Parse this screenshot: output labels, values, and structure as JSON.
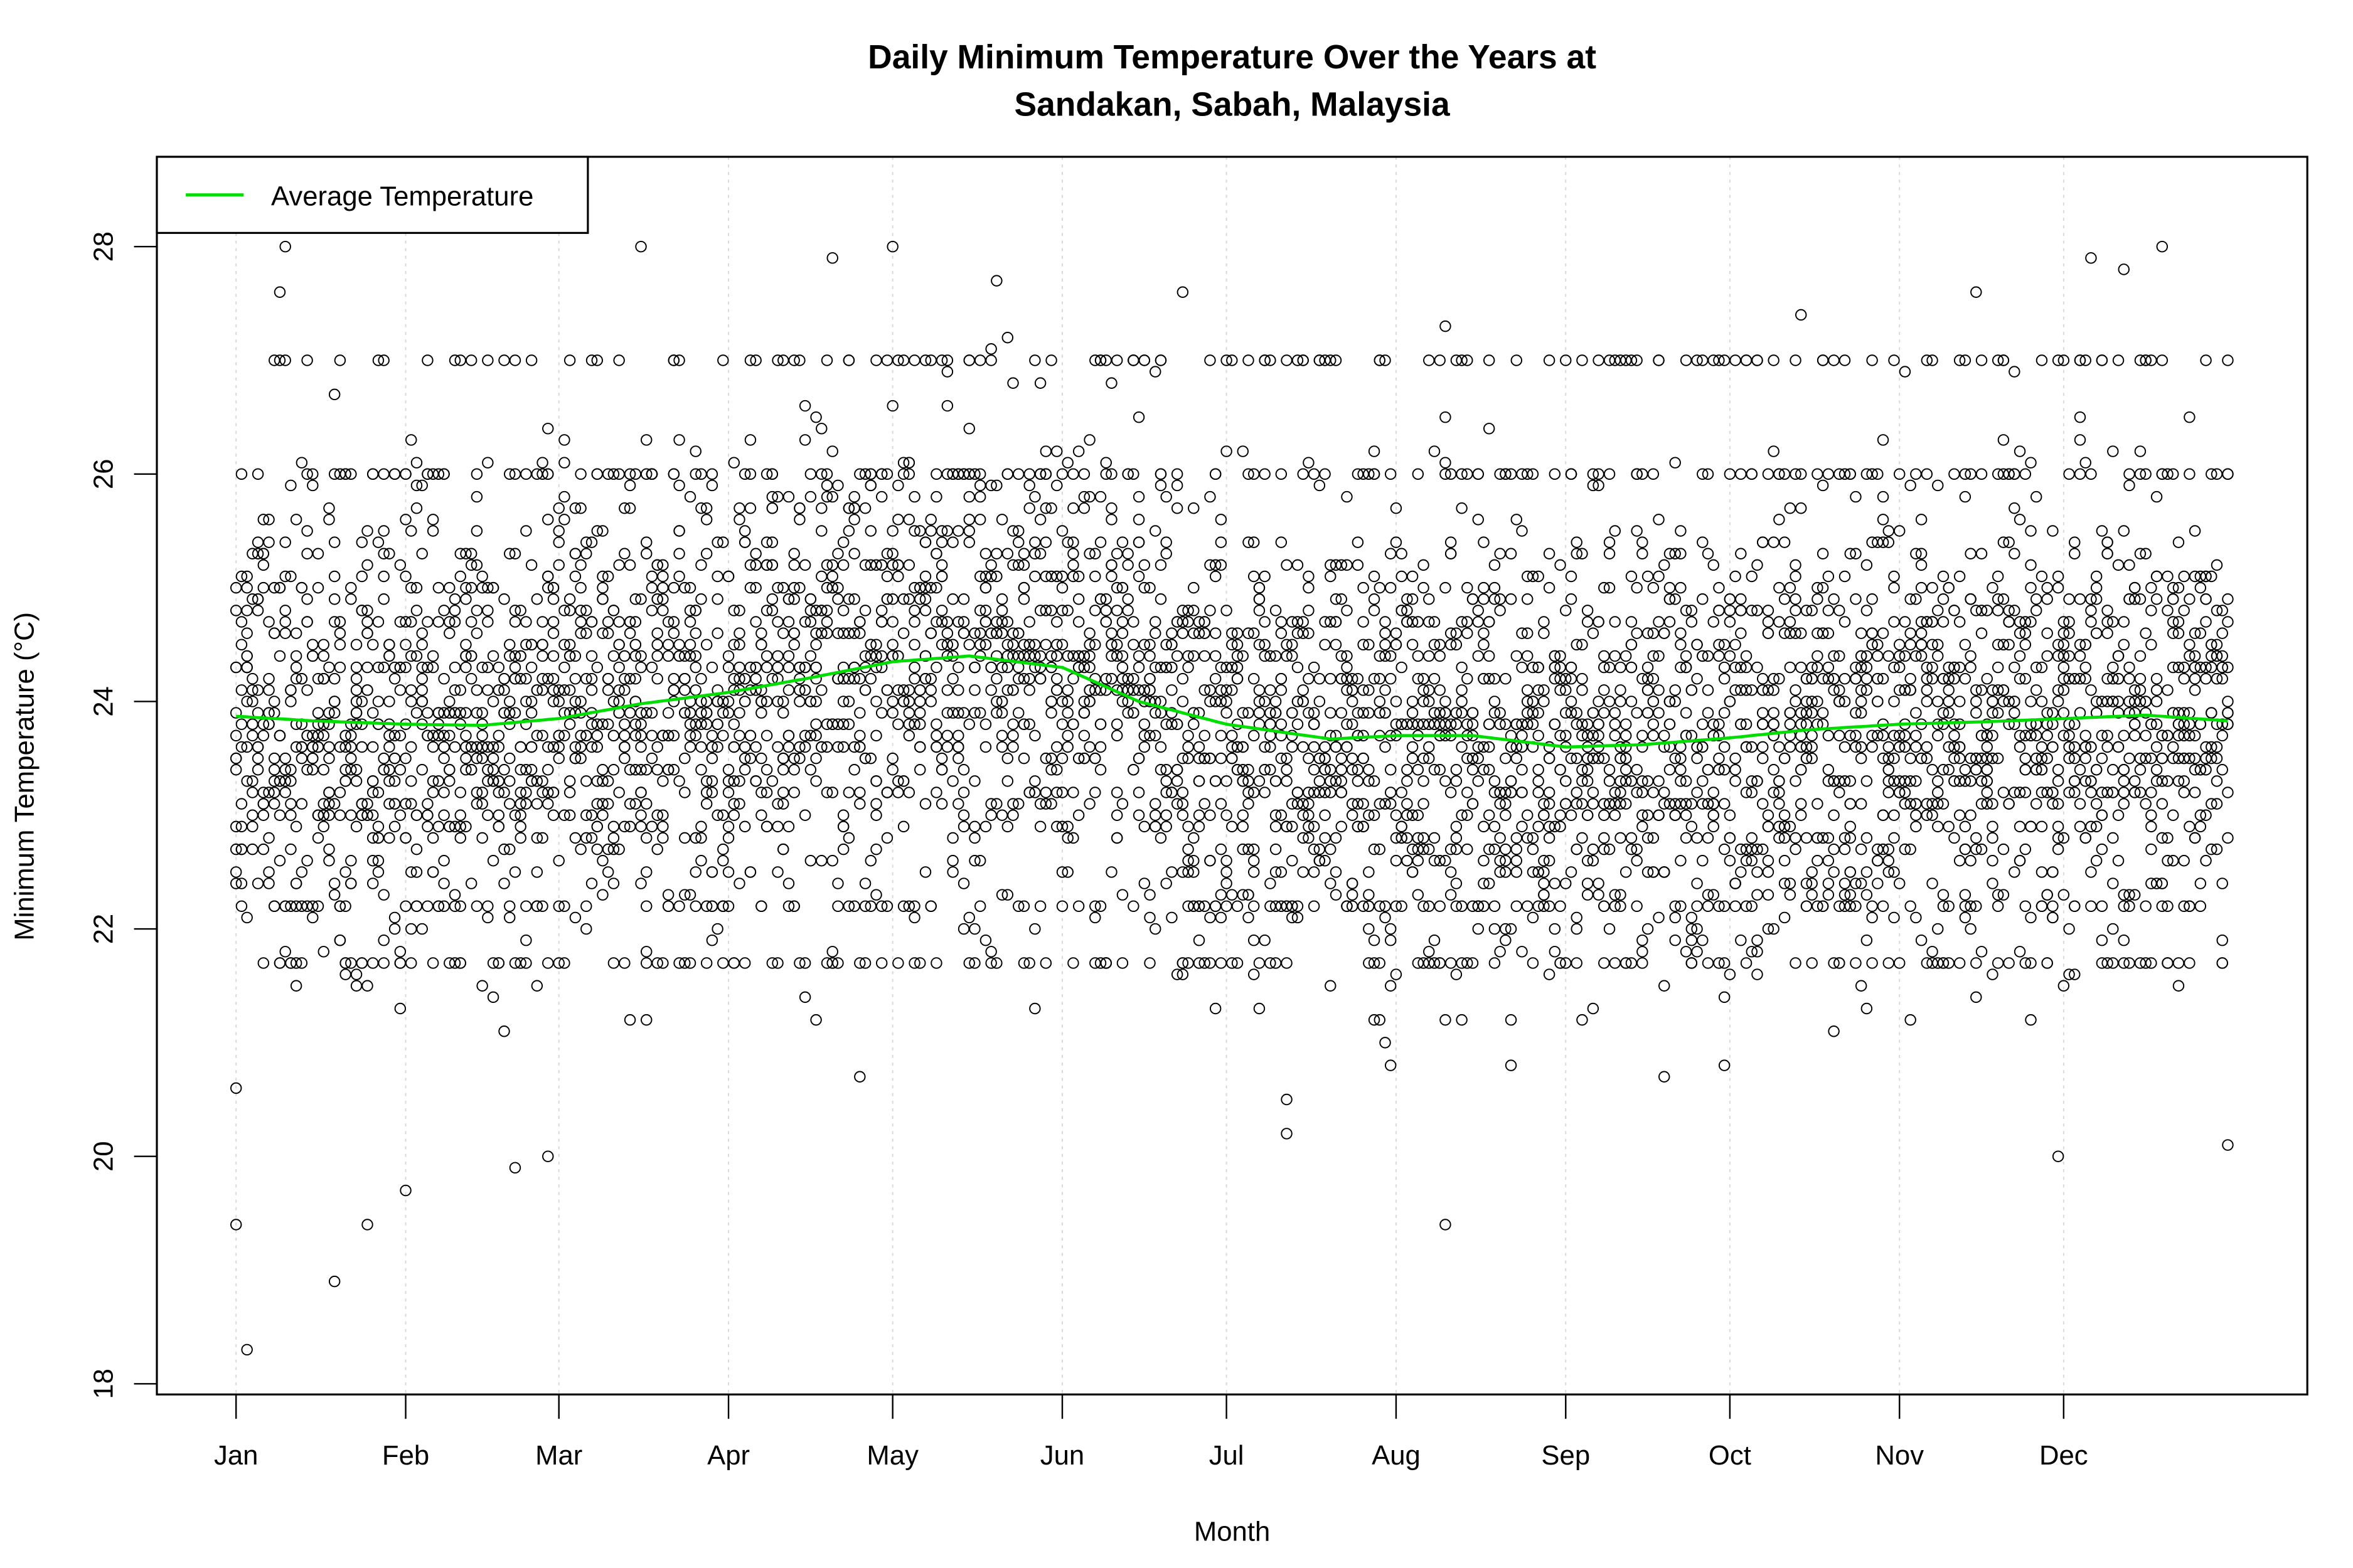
{
  "chart_data": {
    "type": "scatter",
    "title": "Daily Minimum Temperature Over the Years at",
    "subtitle": "Sandakan, Sabah, Malaysia",
    "xlabel": "Month",
    "ylabel": "Minimum Temperature (°C)",
    "x_tick_labels": [
      "Jan",
      "Feb",
      "Mar",
      "Apr",
      "May",
      "Jun",
      "Jul",
      "Aug",
      "Sep",
      "Oct",
      "Nov",
      "Dec"
    ],
    "x_tick_days": [
      1,
      32,
      60,
      91,
      121,
      152,
      182,
      213,
      244,
      274,
      305,
      335
    ],
    "xlim_days": [
      1,
      365
    ],
    "y_ticks": [
      18,
      20,
      22,
      24,
      26,
      28
    ],
    "ylim": [
      18,
      28.8
    ],
    "grid": "vertical dotted at month ticks",
    "legend": {
      "position": "top-left",
      "entries": [
        {
          "label": "Average Temperature",
          "color": "#00dd00"
        }
      ]
    },
    "average_line": {
      "name": "Average Temperature",
      "color": "#00dd00",
      "x_day": [
        1,
        15,
        32,
        46,
        60,
        75,
        91,
        105,
        121,
        135,
        152,
        166,
        182,
        201,
        213,
        227,
        244,
        258,
        274,
        288,
        305,
        320,
        335,
        350,
        365
      ],
      "y": [
        23.87,
        23.83,
        23.8,
        23.79,
        23.85,
        23.98,
        24.08,
        24.2,
        24.35,
        24.4,
        24.3,
        24.0,
        23.8,
        23.67,
        23.7,
        23.7,
        23.6,
        23.62,
        23.68,
        23.75,
        23.8,
        23.82,
        23.85,
        23.88,
        23.83
      ]
    },
    "extreme_points": [
      {
        "x_day": 3,
        "y": 18.3
      },
      {
        "x_day": 1,
        "y": 19.4
      },
      {
        "x_day": 19,
        "y": 18.9
      },
      {
        "x_day": 25,
        "y": 19.4
      },
      {
        "x_day": 32,
        "y": 19.7
      },
      {
        "x_day": 52,
        "y": 19.9
      },
      {
        "x_day": 58,
        "y": 20.0
      },
      {
        "x_day": 193,
        "y": 20.2
      },
      {
        "x_day": 222,
        "y": 19.4
      },
      {
        "x_day": 334,
        "y": 20.0
      },
      {
        "x_day": 365,
        "y": 20.1
      },
      {
        "x_day": 1,
        "y": 20.6
      },
      {
        "x_day": 10,
        "y": 28.0
      },
      {
        "x_day": 75,
        "y": 28.0
      },
      {
        "x_day": 121,
        "y": 28.0
      },
      {
        "x_day": 353,
        "y": 28.0
      },
      {
        "x_day": 110,
        "y": 27.9
      },
      {
        "x_day": 340,
        "y": 27.9
      },
      {
        "x_day": 9,
        "y": 27.6
      },
      {
        "x_day": 140,
        "y": 27.7
      },
      {
        "x_day": 346,
        "y": 27.8
      },
      {
        "x_day": 174,
        "y": 27.6
      },
      {
        "x_day": 287,
        "y": 27.4
      },
      {
        "x_day": 319,
        "y": 27.6
      }
    ]
  }
}
